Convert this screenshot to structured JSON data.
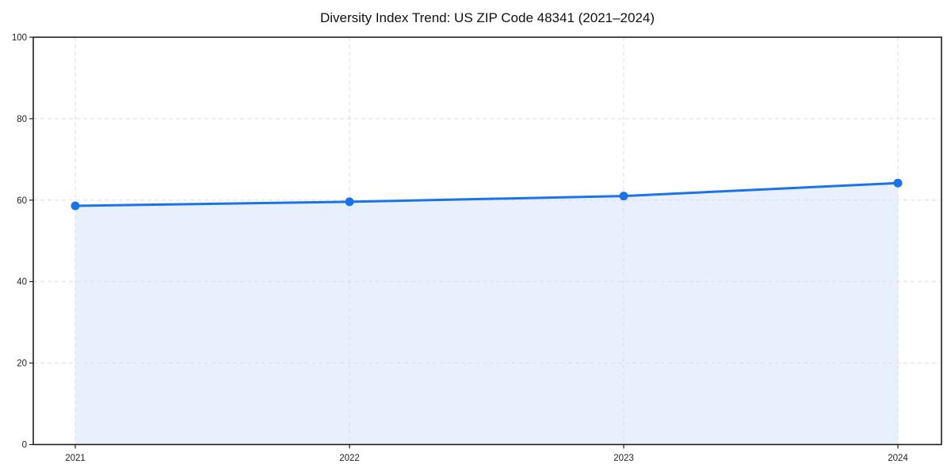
{
  "chart_data": {
    "type": "line",
    "title": "Diversity Index Trend: US ZIP Code 48341 (2021–2024)",
    "categories": [
      "2021",
      "2022",
      "2023",
      "2024"
    ],
    "series": [
      {
        "name": "Diversity Index",
        "values": [
          58.6,
          59.6,
          61.0,
          64.2
        ]
      }
    ],
    "xlabel": "",
    "ylabel": "",
    "ylim": [
      0,
      100
    ],
    "yticks": [
      0,
      20,
      40,
      60,
      80,
      100
    ],
    "grid": true,
    "grid_style": "dashed",
    "legend_position": "none",
    "area_fill": true,
    "marker_shape": "circle",
    "colors": {
      "line": "#1a73e8",
      "marker": "#1a73e8",
      "area_fill": "#e8f0fe",
      "grid": "#dcdcdc",
      "spine": "#1f1f1f",
      "tick_label": "#1f1f1f",
      "title": "#111111",
      "background": "#ffffff"
    }
  }
}
